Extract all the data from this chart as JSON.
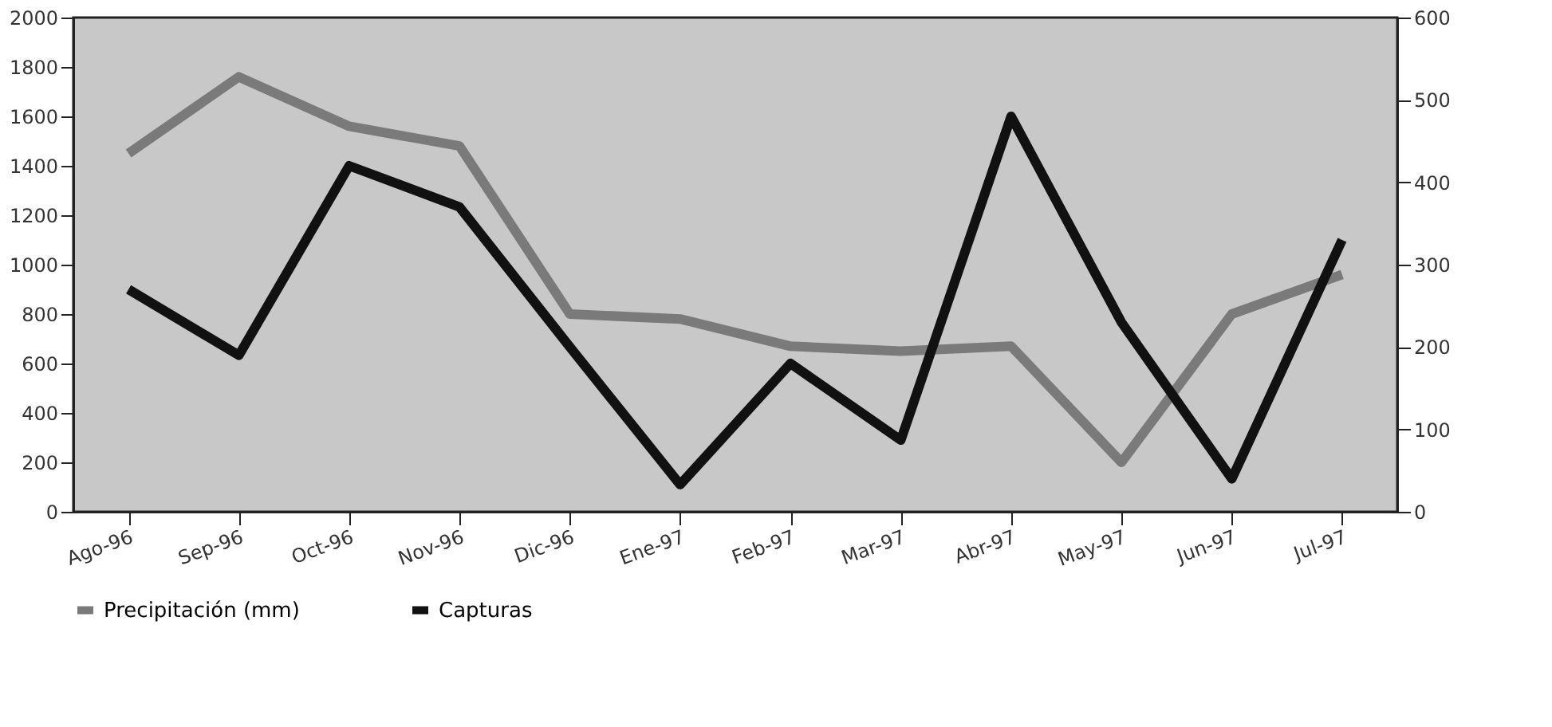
{
  "chart_data": {
    "type": "line",
    "categories": [
      "Ago-96",
      "Sep-96",
      "Oct-96",
      "Nov-96",
      "Dic-96",
      "Ene-97",
      "Feb-97",
      "Mar-97",
      "Abr-97",
      "May-97",
      "Jun-97",
      "Jul-97"
    ],
    "series": [
      {
        "name": "Precipitación (mm)",
        "color": "#7a7a7a",
        "values": [
          1450,
          1760,
          1560,
          1480,
          800,
          780,
          670,
          650,
          670,
          200,
          800,
          960
        ]
      },
      {
        "name": "Capturas",
        "color": "#111111",
        "axis": "y2",
        "values": [
          270,
          190,
          420,
          370,
          200,
          33,
          180,
          87,
          480,
          230,
          40,
          330
        ]
      }
    ],
    "ylim": [
      0,
      2000
    ],
    "yticks": [
      0,
      200,
      400,
      600,
      800,
      1000,
      1200,
      1400,
      1600,
      1800,
      2000
    ],
    "y2lim": [
      0,
      600
    ],
    "y2ticks": [
      0,
      100,
      200,
      300,
      400,
      500,
      600
    ],
    "legend": "bottom",
    "grid": false,
    "marker": "none",
    "line_style": "solid"
  }
}
